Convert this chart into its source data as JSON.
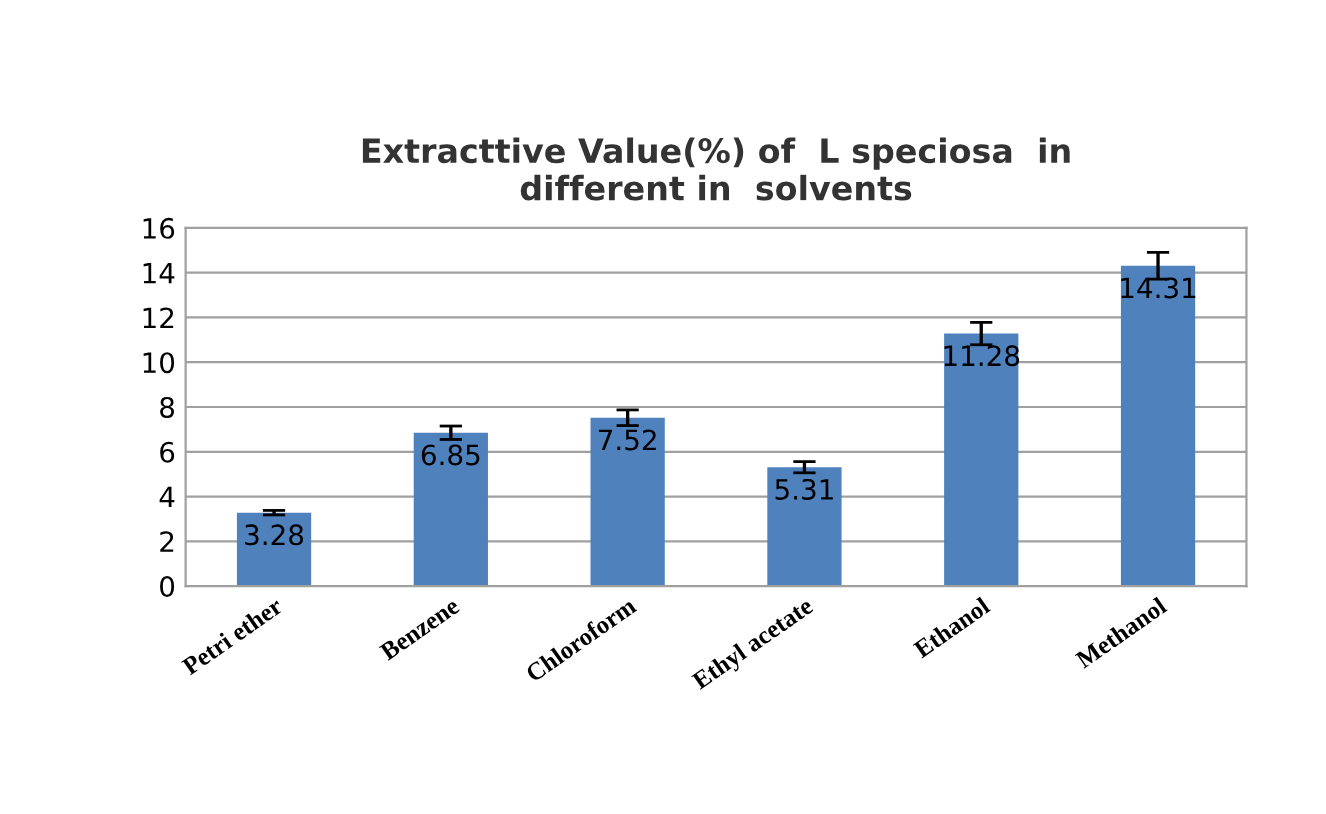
{
  "chart_data": {
    "type": "bar",
    "title": "Extracttive Value(%) of  L speciosa  in\ndifferent in  solvents",
    "categories": [
      "Petri ether",
      "Benzene",
      "Chloroform",
      "Ethyl acetate",
      "Ethanol",
      "Methanol"
    ],
    "values": [
      3.28,
      6.85,
      7.52,
      5.31,
      11.28,
      14.31
    ],
    "errors": [
      0.1,
      0.3,
      0.35,
      0.25,
      0.5,
      0.6
    ],
    "color": "#4f81bd",
    "data_labels": true,
    "ylim": [
      0,
      16
    ],
    "yticks": [
      0,
      2,
      4,
      6,
      8,
      10,
      12,
      14,
      16
    ],
    "grid": "y"
  }
}
